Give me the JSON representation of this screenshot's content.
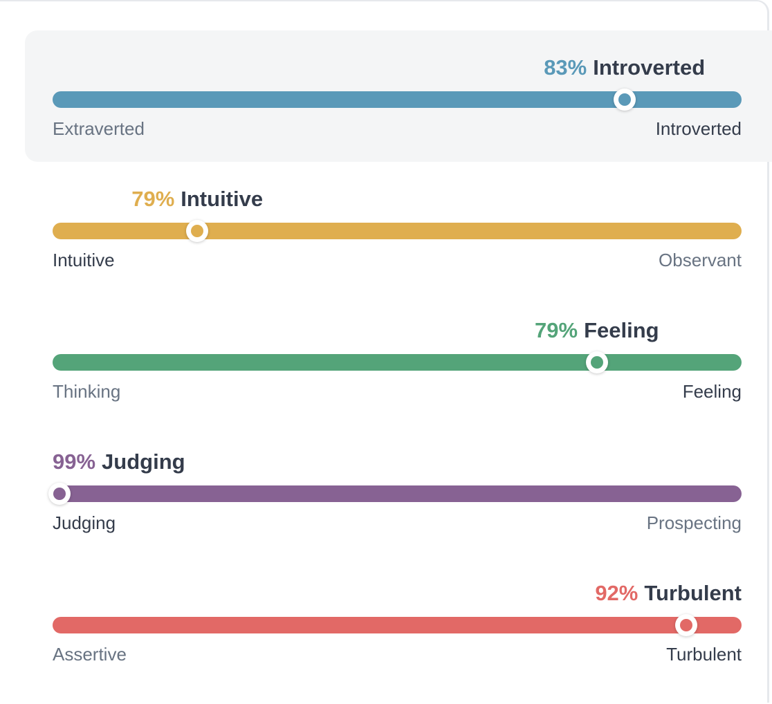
{
  "traits": [
    {
      "id": "energy",
      "percent": 83,
      "percent_label": "83%",
      "result": "Introverted",
      "left_label": "Extraverted",
      "right_label": "Introverted",
      "chosen_side": "right",
      "knob_position": 0.83,
      "color": "#5a99b8",
      "highlighted": true
    },
    {
      "id": "mind",
      "percent": 79,
      "percent_label": "79%",
      "result": "Intuitive",
      "left_label": "Intuitive",
      "right_label": "Observant",
      "chosen_side": "left",
      "knob_position": 0.21,
      "color": "#dfae4f",
      "highlighted": false
    },
    {
      "id": "nature",
      "percent": 79,
      "percent_label": "79%",
      "result": "Feeling",
      "left_label": "Thinking",
      "right_label": "Feeling",
      "chosen_side": "right",
      "knob_position": 0.79,
      "color": "#54a479",
      "highlighted": false
    },
    {
      "id": "tactics",
      "percent": 99,
      "percent_label": "99%",
      "result": "Judging",
      "left_label": "Judging",
      "right_label": "Prospecting",
      "chosen_side": "left",
      "knob_position": 0.01,
      "color": "#876293",
      "highlighted": false
    },
    {
      "id": "identity",
      "percent": 92,
      "percent_label": "92%",
      "result": "Turbulent",
      "left_label": "Assertive",
      "right_label": "Turbulent",
      "chosen_side": "right",
      "knob_position": 0.92,
      "color": "#e26966",
      "highlighted": false
    }
  ]
}
